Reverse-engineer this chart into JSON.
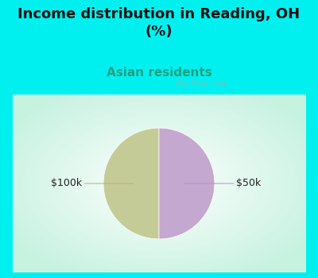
{
  "title": "Income distribution in Reading, OH\n(%)",
  "subtitle": "Asian residents",
  "slices": [
    50,
    50
  ],
  "labels": [
    "$100k",
    "$50k"
  ],
  "colors": [
    "#c5cb96",
    "#c4a8d0"
  ],
  "bg_cyan": "#00f0f0",
  "title_fontsize": 13,
  "subtitle_fontsize": 11,
  "subtitle_color": "#20a080",
  "label_fontsize": 9,
  "watermark": "City-Data.com",
  "startangle": 90,
  "title_color": "#111111"
}
